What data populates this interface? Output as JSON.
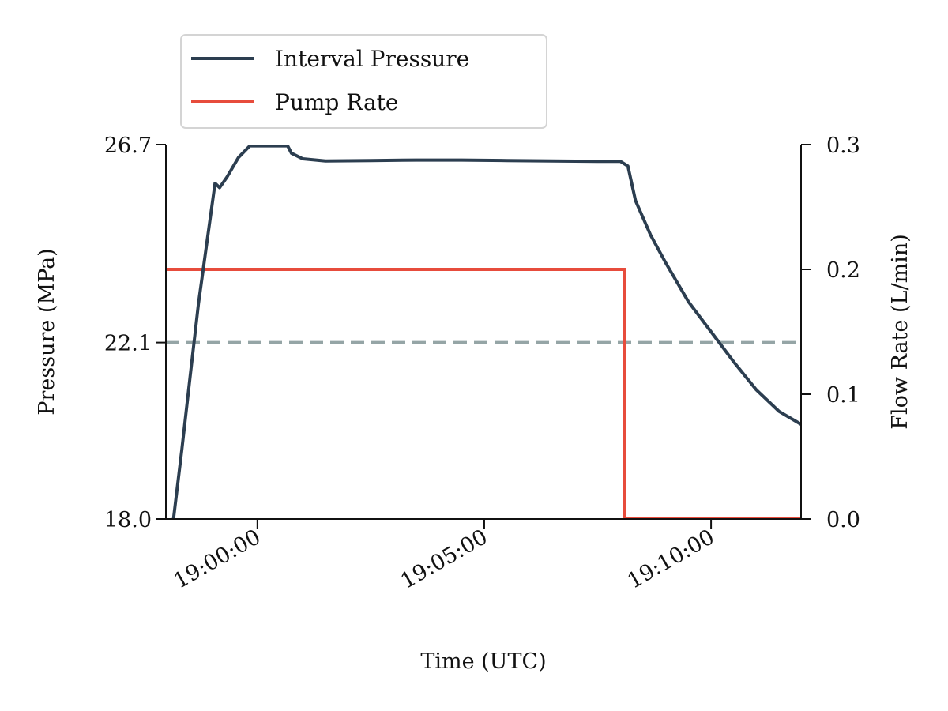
{
  "chart_data": {
    "type": "line",
    "title": "",
    "xlabel": "Time (UTC)",
    "ylabel_left": "Pressure (MPa)",
    "ylabel_right": "Flow Rate (L/min)",
    "x_range": [
      "18:57:59",
      "19:11:59"
    ],
    "y_left_range": [
      18.0,
      26.7
    ],
    "y_right_range": [
      0.0,
      0.3
    ],
    "x_ticks": [
      "19:00:00",
      "19:05:00",
      "19:10:00"
    ],
    "y_left_ticks": [
      "18.0",
      "22.1",
      "26.7"
    ],
    "y_right_ticks": [
      "0.0",
      "0.1",
      "0.2",
      "0.3"
    ],
    "grid": false,
    "legend_position": "top-left, above plot",
    "colors": {
      "pressure": "#2c3e50",
      "pump": "#e74c3c",
      "threshold": "#95a5a6"
    },
    "reference_lines": [
      {
        "axis": "left",
        "value": 22.1,
        "style": "dashed"
      }
    ],
    "series": [
      {
        "name": "Interval Pressure",
        "axis": "left",
        "points": [
          [
            "18:58:09",
            18.0
          ],
          [
            "18:58:20",
            19.6
          ],
          [
            "18:58:31",
            21.3
          ],
          [
            "18:58:42",
            23.0
          ],
          [
            "18:58:53",
            24.4
          ],
          [
            "18:59:04",
            25.8
          ],
          [
            "18:59:10",
            25.7
          ],
          [
            "18:59:20",
            25.95
          ],
          [
            "18:59:35",
            26.4
          ],
          [
            "18:59:50",
            26.67
          ],
          [
            "19:00:10",
            26.67
          ],
          [
            "19:00:40",
            26.67
          ],
          [
            "19:00:45",
            26.5
          ],
          [
            "19:01:00",
            26.37
          ],
          [
            "19:01:30",
            26.32
          ],
          [
            "19:02:30",
            26.33
          ],
          [
            "19:03:30",
            26.34
          ],
          [
            "19:04:30",
            26.34
          ],
          [
            "19:05:30",
            26.33
          ],
          [
            "19:06:30",
            26.32
          ],
          [
            "19:07:30",
            26.31
          ],
          [
            "19:08:00",
            26.31
          ],
          [
            "19:08:10",
            26.2
          ],
          [
            "19:08:20",
            25.4
          ],
          [
            "19:08:40",
            24.6
          ],
          [
            "19:09:00",
            23.95
          ],
          [
            "19:09:30",
            23.05
          ],
          [
            "19:10:00",
            22.35
          ],
          [
            "19:10:30",
            21.65
          ],
          [
            "19:11:00",
            21.0
          ],
          [
            "19:11:30",
            20.5
          ],
          [
            "19:11:59",
            20.2
          ]
        ]
      },
      {
        "name": "Pump Rate",
        "axis": "right",
        "points": [
          [
            "18:57:59",
            0.2
          ],
          [
            "19:08:05",
            0.2
          ],
          [
            "19:08:05",
            0.0
          ],
          [
            "19:11:59",
            0.0
          ]
        ]
      }
    ]
  }
}
